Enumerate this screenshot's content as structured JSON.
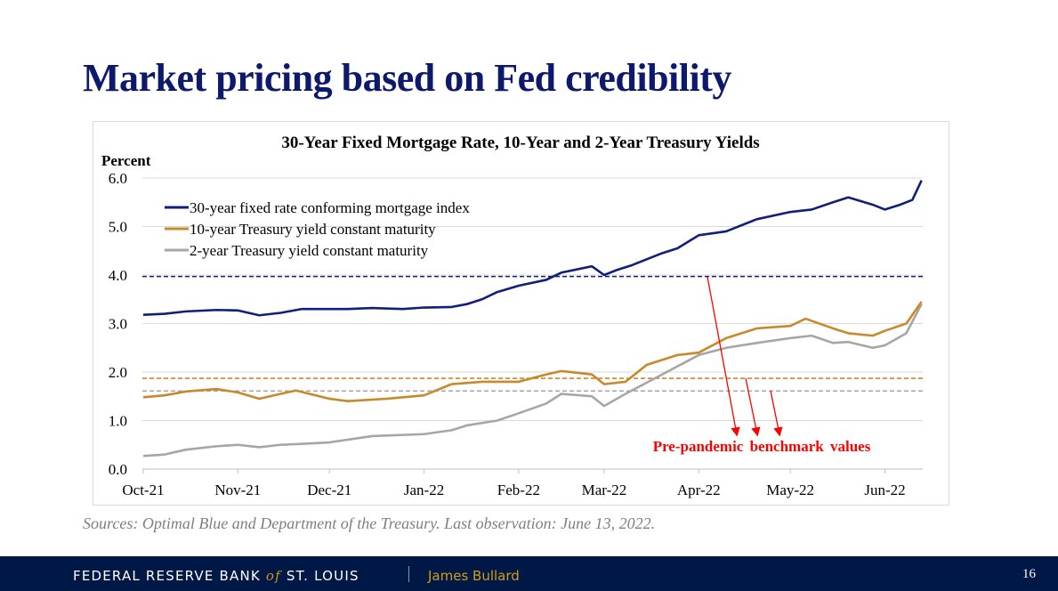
{
  "slide": {
    "title": "Market pricing based on Fed credibility",
    "source": "Sources: Optimal Blue and Department of the Treasury. Last observation: June 13, 2022.",
    "footer": {
      "org_pre": "FEDERAL RESERVE BANK ",
      "org_of": "of",
      "org_post": " ST. LOUIS",
      "speaker": "James Bullard",
      "page_number": "16"
    }
  },
  "chart_data": {
    "type": "line",
    "title": "30-Year Fixed Mortgage Rate, 10-Year and 2-Year Treasury Yields",
    "ylabel": "Percent",
    "xlabel": "",
    "x_units": "days since Oct 1, 2021",
    "xlim": [
      0,
      255
    ],
    "ylim": [
      0,
      6
    ],
    "grid": true,
    "legend_position": "top-left",
    "yticks": [
      "0.0",
      "1.0",
      "2.0",
      "3.0",
      "4.0",
      "5.0",
      "6.0"
    ],
    "xticks": [
      {
        "day": 0,
        "label": "Oct-21"
      },
      {
        "day": 31,
        "label": "Nov-21"
      },
      {
        "day": 61,
        "label": "Dec-21"
      },
      {
        "day": 92,
        "label": "Jan-22"
      },
      {
        "day": 123,
        "label": "Feb-22"
      },
      {
        "day": 151,
        "label": "Mar-22"
      },
      {
        "day": 182,
        "label": "Apr-22"
      },
      {
        "day": 212,
        "label": "May-22"
      },
      {
        "day": 243,
        "label": "Jun-22"
      }
    ],
    "series": [
      {
        "name": "30-year fixed rate conforming mortgage index",
        "color": "#0f1f7a",
        "benchmark": 3.97,
        "points": [
          [
            0,
            3.18
          ],
          [
            7,
            3.2
          ],
          [
            14,
            3.25
          ],
          [
            24,
            3.28
          ],
          [
            31,
            3.27
          ],
          [
            38,
            3.17
          ],
          [
            45,
            3.22
          ],
          [
            52,
            3.3
          ],
          [
            61,
            3.3
          ],
          [
            67,
            3.3
          ],
          [
            75,
            3.32
          ],
          [
            85,
            3.3
          ],
          [
            92,
            3.33
          ],
          [
            101,
            3.34
          ],
          [
            106,
            3.4
          ],
          [
            111,
            3.5
          ],
          [
            116,
            3.65
          ],
          [
            123,
            3.78
          ],
          [
            132,
            3.9
          ],
          [
            137,
            4.05
          ],
          [
            147,
            4.18
          ],
          [
            151,
            4.0
          ],
          [
            155,
            4.1
          ],
          [
            160,
            4.2
          ],
          [
            170,
            4.45
          ],
          [
            175,
            4.55
          ],
          [
            182,
            4.82
          ],
          [
            191,
            4.9
          ],
          [
            201,
            5.15
          ],
          [
            212,
            5.3
          ],
          [
            219,
            5.35
          ],
          [
            226,
            5.5
          ],
          [
            231,
            5.6
          ],
          [
            239,
            5.45
          ],
          [
            243,
            5.35
          ],
          [
            248,
            5.45
          ],
          [
            252,
            5.55
          ],
          [
            255,
            5.95
          ]
        ]
      },
      {
        "name": "10-year Treasury yield constant maturity",
        "color": "#c8892a",
        "benchmark": 1.87,
        "points": [
          [
            0,
            1.48
          ],
          [
            7,
            1.52
          ],
          [
            14,
            1.6
          ],
          [
            24,
            1.65
          ],
          [
            31,
            1.58
          ],
          [
            38,
            1.45
          ],
          [
            45,
            1.55
          ],
          [
            50,
            1.62
          ],
          [
            61,
            1.45
          ],
          [
            67,
            1.4
          ],
          [
            80,
            1.45
          ],
          [
            92,
            1.52
          ],
          [
            101,
            1.75
          ],
          [
            111,
            1.8
          ],
          [
            123,
            1.8
          ],
          [
            132,
            1.95
          ],
          [
            137,
            2.02
          ],
          [
            147,
            1.95
          ],
          [
            151,
            1.75
          ],
          [
            158,
            1.8
          ],
          [
            165,
            2.15
          ],
          [
            175,
            2.35
          ],
          [
            182,
            2.4
          ],
          [
            191,
            2.7
          ],
          [
            201,
            2.9
          ],
          [
            212,
            2.95
          ],
          [
            217,
            3.1
          ],
          [
            226,
            2.9
          ],
          [
            231,
            2.8
          ],
          [
            239,
            2.75
          ],
          [
            243,
            2.85
          ],
          [
            250,
            3.0
          ],
          [
            255,
            3.45
          ]
        ]
      },
      {
        "name": "2-year Treasury yield constant maturity",
        "color": "#a6a6a6",
        "benchmark": 1.61,
        "points": [
          [
            0,
            0.27
          ],
          [
            7,
            0.3
          ],
          [
            14,
            0.4
          ],
          [
            24,
            0.47
          ],
          [
            31,
            0.5
          ],
          [
            38,
            0.45
          ],
          [
            45,
            0.5
          ],
          [
            52,
            0.52
          ],
          [
            61,
            0.55
          ],
          [
            75,
            0.68
          ],
          [
            92,
            0.72
          ],
          [
            101,
            0.8
          ],
          [
            106,
            0.9
          ],
          [
            116,
            1.0
          ],
          [
            123,
            1.15
          ],
          [
            132,
            1.35
          ],
          [
            137,
            1.55
          ],
          [
            147,
            1.5
          ],
          [
            151,
            1.3
          ],
          [
            158,
            1.55
          ],
          [
            170,
            1.95
          ],
          [
            182,
            2.35
          ],
          [
            191,
            2.5
          ],
          [
            201,
            2.6
          ],
          [
            212,
            2.7
          ],
          [
            219,
            2.75
          ],
          [
            226,
            2.6
          ],
          [
            231,
            2.62
          ],
          [
            239,
            2.5
          ],
          [
            243,
            2.55
          ],
          [
            250,
            2.8
          ],
          [
            255,
            3.4
          ]
        ]
      }
    ],
    "annotation": "Pre-pandemic benchmark values"
  }
}
